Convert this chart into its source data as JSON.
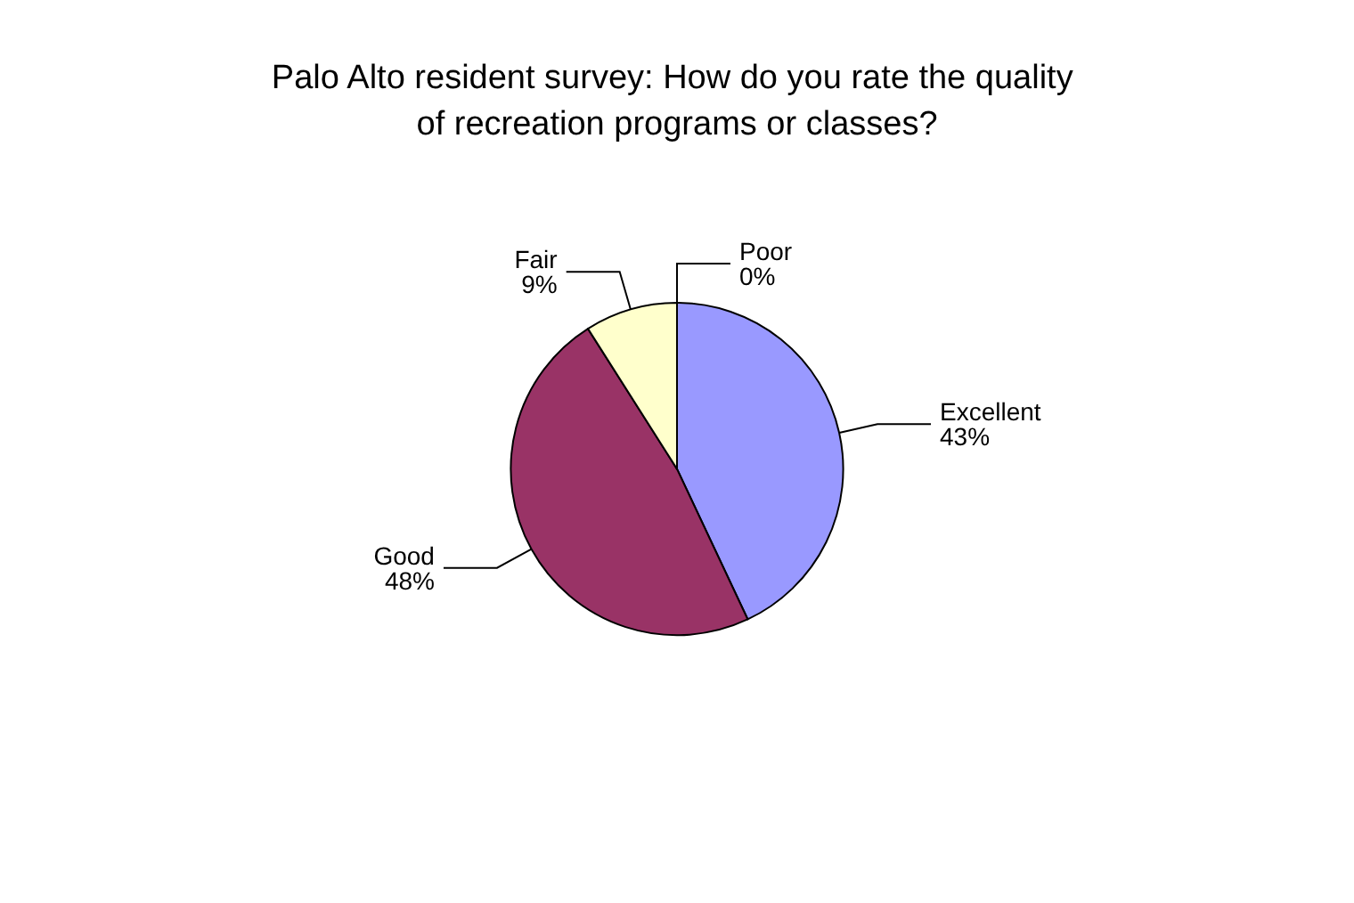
{
  "chart_data": {
    "type": "pie",
    "title": "Palo Alto resident survey: How do you rate the quality of recreation programs or classes?",
    "categories": [
      "Excellent",
      "Good",
      "Fair",
      "Poor"
    ],
    "values": [
      43,
      48,
      9,
      0
    ],
    "value_labels": [
      "43%",
      "48%",
      "9%",
      "0%"
    ],
    "colors": [
      "#9999ff",
      "#993366",
      "#ffffcc",
      "#ccffff"
    ],
    "legend": false
  }
}
